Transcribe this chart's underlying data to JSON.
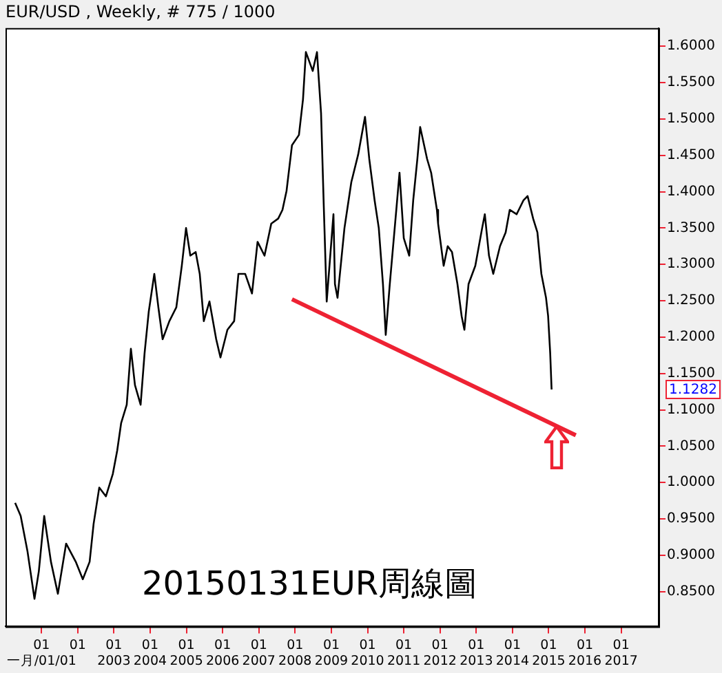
{
  "chart_data": {
    "type": "line",
    "title": "EUR/USD , Weekly, # 775 / 1000",
    "annotations": [
      "20150131EUR周線圖",
      "1.1282"
    ],
    "xlim": [
      "2000-01-04",
      "2018-01-13"
    ],
    "xticks": [
      {
        "value": "2001-01-01",
        "label": "01\n一月/01/01"
      },
      {
        "value": "2002-01-01",
        "label": "01\n"
      },
      {
        "value": "2003-01-01",
        "label": "01\n2003"
      },
      {
        "value": "2004-01-01",
        "label": "01\n2004"
      },
      {
        "value": "2005-01-01",
        "label": "01\n2005"
      },
      {
        "value": "2006-01-01",
        "label": "01\n2006"
      },
      {
        "value": "2007-01-01",
        "label": "01\n2007"
      },
      {
        "value": "2008-01-01",
        "label": "01\n2008"
      },
      {
        "value": "2009-01-01",
        "label": "01\n2009"
      },
      {
        "value": "2010-01-01",
        "label": "01\n2010"
      },
      {
        "value": "2011-01-01",
        "label": "01\n2011"
      },
      {
        "value": "2012-01-01",
        "label": "01\n2012"
      },
      {
        "value": "2013-01-01",
        "label": "01\n2013"
      },
      {
        "value": "2014-01-01",
        "label": "01\n2014"
      },
      {
        "value": "2015-01-01",
        "label": "01\n2015"
      },
      {
        "value": "2016-01-01",
        "label": "01\n2016"
      },
      {
        "value": "2017-01-01",
        "label": "01\n2017"
      }
    ],
    "ylim": [
      0.802,
      1.625
    ],
    "yticks": [
      {
        "value": 0.85,
        "label": "0.8500"
      },
      {
        "value": 0.9,
        "label": "0.9000"
      },
      {
        "value": 0.95,
        "label": "0.9500"
      },
      {
        "value": 1.0,
        "label": "1.0000"
      },
      {
        "value": 1.05,
        "label": "1.0500"
      },
      {
        "value": 1.1,
        "label": "1.1000"
      },
      {
        "value": 1.15,
        "label": "1.1500"
      },
      {
        "value": 1.2,
        "label": "1.2000"
      },
      {
        "value": 1.25,
        "label": "1.2500"
      },
      {
        "value": 1.3,
        "label": "1.3000"
      },
      {
        "value": 1.35,
        "label": "1.3500"
      },
      {
        "value": 1.4,
        "label": "1.4000"
      },
      {
        "value": 1.45,
        "label": "1.4500"
      },
      {
        "value": 1.5,
        "label": "1.5000"
      },
      {
        "value": 1.55,
        "label": "1.5500"
      },
      {
        "value": 1.6,
        "label": "1.6000"
      }
    ],
    "series": [
      {
        "color": "#000000",
        "x": [
          "2000-04-10",
          "2000-06-05",
          "2000-08-13",
          "2000-10-22",
          "2000-12-05",
          "2001-01-28",
          "2001-04-06",
          "2001-06-15",
          "2001-09-06",
          "2001-12-12",
          "2002-02-21",
          "2002-05-01",
          "2002-06-10",
          "2002-08-06",
          "2002-10-12",
          "2002-12-21",
          "2003-02-03",
          "2003-03-15",
          "2003-05-10",
          "2003-06-21",
          "2003-08-01",
          "2003-09-27",
          "2003-11-06",
          "2003-12-18",
          "2004-02-12",
          "2004-03-24",
          "2004-05-06",
          "2004-07-13",
          "2004-09-21",
          "2004-11-15",
          "2004-12-28",
          "2005-02-09",
          "2005-04-04",
          "2005-05-15",
          "2005-06-25",
          "2005-08-21",
          "2005-10-28",
          "2005-12-10",
          "2006-02-18",
          "2006-04-27",
          "2006-06-09",
          "2006-08-16",
          "2006-10-24",
          "2006-12-19",
          "2007-02-27",
          "2007-05-06",
          "2007-07-15",
          "2007-08-27",
          "2007-10-07",
          "2007-12-01",
          "2008-02-09",
          "2008-03-21",
          "2008-04-19",
          "2008-06-27",
          "2008-08-09",
          "2008-09-19",
          "2008-10-16",
          "2008-11-15",
          "2009-01-22",
          "2009-02-06",
          "2009-03-04",
          "2009-05-13",
          "2009-07-21",
          "2009-09-28",
          "2009-12-06",
          "2010-01-18",
          "2010-03-13",
          "2010-04-24",
          "2010-06-05",
          "2010-07-03",
          "2010-08-13",
          "2010-10-22",
          "2010-11-19",
          "2011-01-01",
          "2011-02-25",
          "2011-04-06",
          "2011-05-18",
          "2011-06-15",
          "2011-08-24",
          "2011-10-04",
          "2011-12-01",
          "2011-12-13",
          "2012-02-07",
          "2012-03-19",
          "2012-05-01",
          "2012-06-25",
          "2012-08-06",
          "2012-09-03",
          "2012-10-15",
          "2012-12-22",
          "2013-03-01",
          "2013-03-28",
          "2013-05-09",
          "2013-06-21",
          "2013-08-28",
          "2013-10-24",
          "2013-12-04",
          "2014-02-12",
          "2014-04-21",
          "2014-06-02",
          "2014-07-28",
          "2014-09-09",
          "2014-10-19",
          "2014-12-05",
          "2014-12-26",
          "2015-01-16",
          "2015-01-30"
        ],
        "values": [
          0.972,
          0.954,
          0.905,
          0.84,
          0.878,
          0.954,
          0.891,
          0.847,
          0.916,
          0.891,
          0.867,
          0.891,
          0.943,
          0.993,
          0.981,
          1.012,
          1.044,
          1.082,
          1.107,
          1.184,
          1.134,
          1.107,
          1.178,
          1.235,
          1.287,
          1.241,
          1.197,
          1.222,
          1.241,
          1.298,
          1.35,
          1.312,
          1.317,
          1.287,
          1.222,
          1.249,
          1.197,
          1.172,
          1.21,
          1.222,
          1.287,
          1.287,
          1.26,
          1.331,
          1.312,
          1.356,
          1.363,
          1.375,
          1.401,
          1.464,
          1.478,
          1.527,
          1.592,
          1.566,
          1.592,
          1.508,
          1.382,
          1.249,
          1.369,
          1.273,
          1.254,
          1.35,
          1.413,
          1.451,
          1.503,
          1.445,
          1.388,
          1.35,
          1.273,
          1.203,
          1.273,
          1.382,
          1.426,
          1.336,
          1.312,
          1.388,
          1.445,
          1.489,
          1.445,
          1.426,
          1.375,
          1.356,
          1.298,
          1.325,
          1.317,
          1.273,
          1.229,
          1.21,
          1.273,
          1.298,
          1.35,
          1.369,
          1.312,
          1.287,
          1.325,
          1.344,
          1.375,
          1.369,
          1.388,
          1.394,
          1.363,
          1.344,
          1.287,
          1.254,
          1.229,
          1.178,
          1.128
        ]
      },
      {
        "color": "#ee2233",
        "x": [
          "2007-12-01",
          "2015-10-01"
        ],
        "values": [
          1.252,
          1.065
        ]
      }
    ]
  }
}
